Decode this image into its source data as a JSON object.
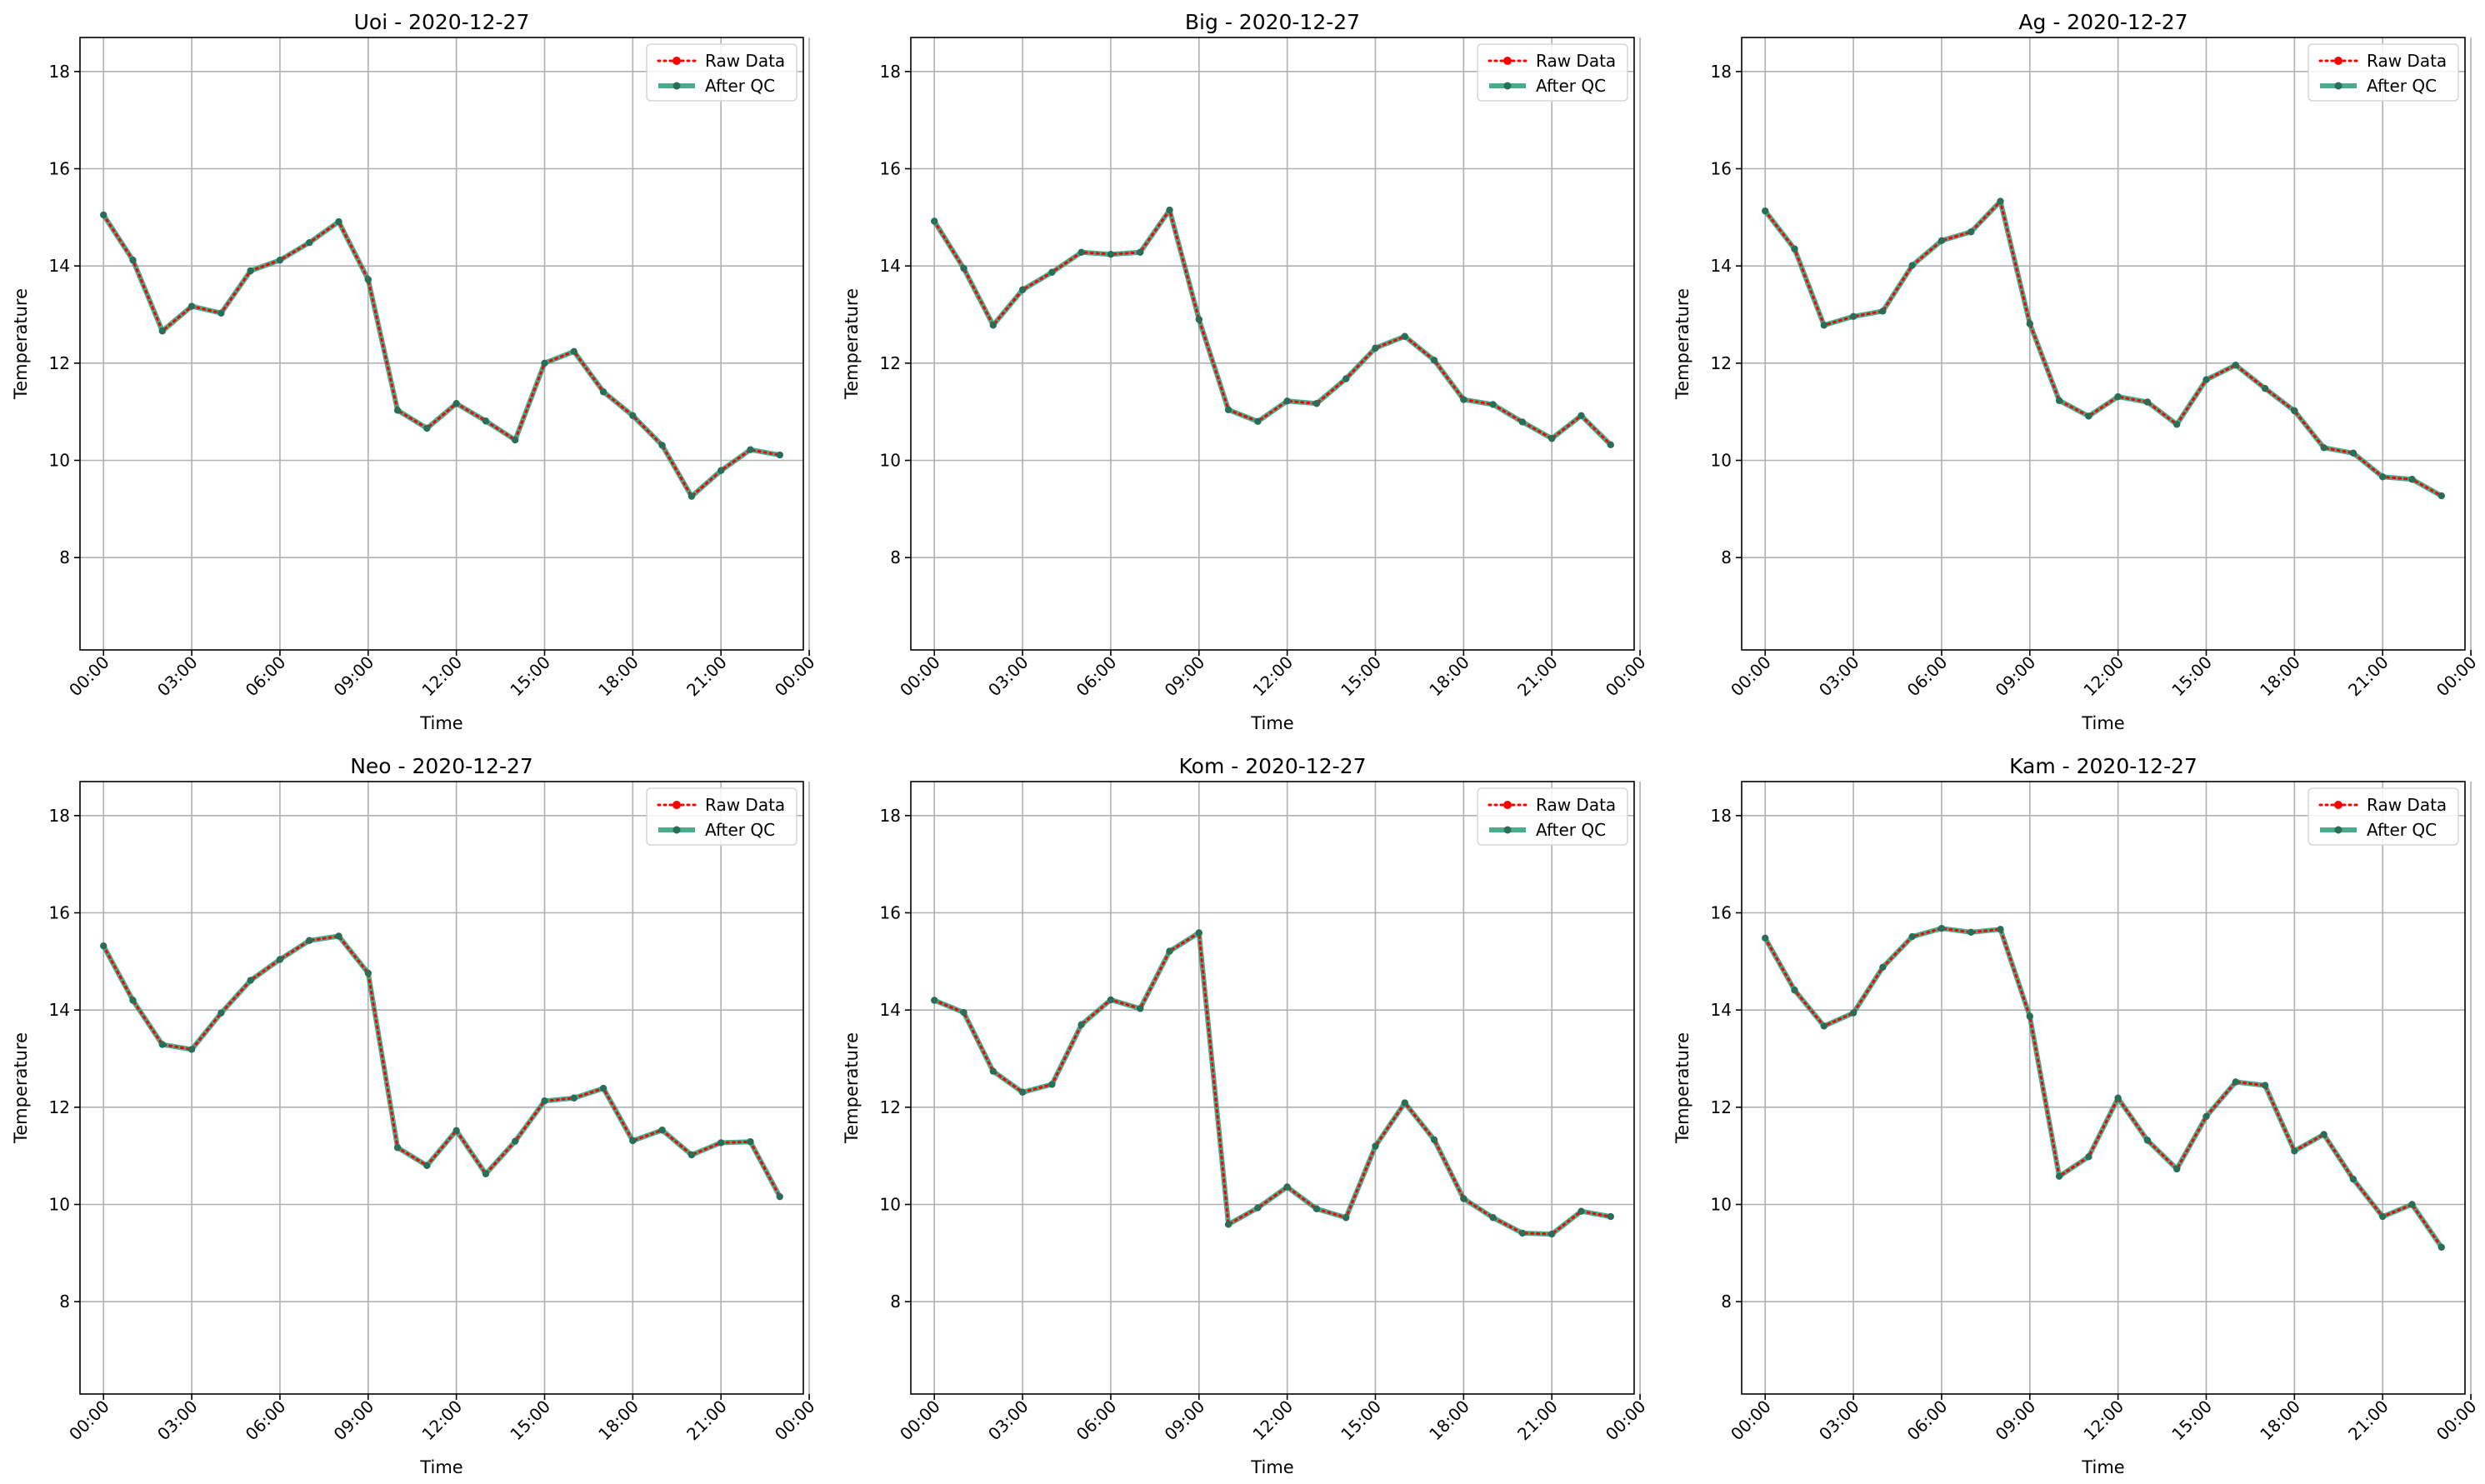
{
  "colors": {
    "raw": "#ff0000",
    "qc": "#2a9d78",
    "marker": "#2b6e58",
    "grid": "#b0b0b0",
    "axes": "#000000"
  },
  "chart_data": [
    {
      "type": "line",
      "title": "Uoi - 2020-12-27",
      "xlabel": "Time",
      "ylabel": "Temperature",
      "xlim": [
        -0.8,
        23.8
      ],
      "ylim": [
        6.1,
        18.7
      ],
      "yticks": [
        8,
        10,
        12,
        14,
        16,
        18
      ],
      "xticks": [
        0,
        3,
        6,
        9,
        12,
        15,
        18,
        21,
        24
      ],
      "xticklabels": [
        "00:00",
        "03:00",
        "06:00",
        "09:00",
        "12:00",
        "15:00",
        "18:00",
        "21:00",
        "00:00"
      ],
      "grid": true,
      "legend_position": "top-right",
      "x": [
        "00:00",
        "01:00",
        "02:00",
        "03:00",
        "04:00",
        "05:00",
        "06:00",
        "07:00",
        "08:00",
        "09:00",
        "10:00",
        "11:00",
        "12:00",
        "13:00",
        "14:00",
        "15:00",
        "16:00",
        "17:00",
        "18:00",
        "19:00",
        "20:00",
        "21:00",
        "22:00",
        "23:00"
      ],
      "series": [
        {
          "name": "Raw Data",
          "style": "dotted",
          "values": [
            15.05,
            14.12,
            12.66,
            13.17,
            13.03,
            13.9,
            14.12,
            14.48,
            14.91,
            13.72,
            11.03,
            10.66,
            11.17,
            10.81,
            10.42,
            12.0,
            12.24,
            11.41,
            10.92,
            10.31,
            9.26,
            9.79,
            10.22,
            10.11
          ]
        },
        {
          "name": "After QC",
          "style": "solid",
          "values": [
            15.05,
            14.12,
            12.66,
            13.17,
            13.03,
            13.9,
            14.12,
            14.48,
            14.91,
            13.72,
            11.03,
            10.66,
            11.17,
            10.81,
            10.42,
            12.0,
            12.24,
            11.41,
            10.92,
            10.31,
            9.26,
            9.79,
            10.22,
            10.11
          ]
        }
      ]
    },
    {
      "type": "line",
      "title": "Big - 2020-12-27",
      "xlabel": "Time",
      "ylabel": "Temperature",
      "xlim": [
        -0.8,
        23.8
      ],
      "ylim": [
        6.1,
        18.7
      ],
      "yticks": [
        8,
        10,
        12,
        14,
        16,
        18
      ],
      "xticks": [
        0,
        3,
        6,
        9,
        12,
        15,
        18,
        21,
        24
      ],
      "xticklabels": [
        "00:00",
        "03:00",
        "06:00",
        "09:00",
        "12:00",
        "15:00",
        "18:00",
        "21:00",
        "00:00"
      ],
      "grid": true,
      "legend_position": "top-right",
      "x": [
        "00:00",
        "01:00",
        "02:00",
        "03:00",
        "04:00",
        "05:00",
        "06:00",
        "07:00",
        "08:00",
        "09:00",
        "10:00",
        "11:00",
        "12:00",
        "13:00",
        "14:00",
        "15:00",
        "16:00",
        "17:00",
        "18:00",
        "19:00",
        "20:00",
        "21:00",
        "22:00",
        "23:00"
      ],
      "series": [
        {
          "name": "Raw Data",
          "style": "dotted",
          "values": [
            14.92,
            13.95,
            12.78,
            13.51,
            13.87,
            14.28,
            14.24,
            14.28,
            15.15,
            12.9,
            11.04,
            10.8,
            11.22,
            11.17,
            11.68,
            12.31,
            12.55,
            12.06,
            11.25,
            11.15,
            10.79,
            10.45,
            10.92,
            10.32
          ]
        },
        {
          "name": "After QC",
          "style": "solid",
          "values": [
            14.92,
            13.95,
            12.78,
            13.51,
            13.87,
            14.28,
            14.24,
            14.28,
            15.15,
            12.9,
            11.04,
            10.8,
            11.22,
            11.17,
            11.68,
            12.31,
            12.55,
            12.06,
            11.25,
            11.15,
            10.79,
            10.45,
            10.92,
            10.32
          ]
        }
      ]
    },
    {
      "type": "line",
      "title": "Ag - 2020-12-27",
      "xlabel": "Time",
      "ylabel": "Temperature",
      "xlim": [
        -0.8,
        23.8
      ],
      "ylim": [
        6.1,
        18.7
      ],
      "yticks": [
        8,
        10,
        12,
        14,
        16,
        18
      ],
      "xticks": [
        0,
        3,
        6,
        9,
        12,
        15,
        18,
        21,
        24
      ],
      "xticklabels": [
        "00:00",
        "03:00",
        "06:00",
        "09:00",
        "12:00",
        "15:00",
        "18:00",
        "21:00",
        "00:00"
      ],
      "grid": true,
      "legend_position": "top-right",
      "x": [
        "00:00",
        "01:00",
        "02:00",
        "03:00",
        "04:00",
        "05:00",
        "06:00",
        "07:00",
        "08:00",
        "09:00",
        "10:00",
        "11:00",
        "12:00",
        "13:00",
        "14:00",
        "15:00",
        "16:00",
        "17:00",
        "18:00",
        "19:00",
        "20:00",
        "21:00",
        "22:00",
        "23:00"
      ],
      "series": [
        {
          "name": "Raw Data",
          "style": "dotted",
          "values": [
            15.13,
            14.35,
            12.78,
            12.96,
            13.07,
            14.01,
            14.52,
            14.7,
            15.33,
            12.81,
            11.23,
            10.91,
            11.31,
            11.2,
            10.74,
            11.66,
            11.96,
            11.48,
            11.02,
            10.26,
            10.15,
            9.66,
            9.61,
            9.27
          ]
        },
        {
          "name": "After QC",
          "style": "solid",
          "values": [
            15.13,
            14.35,
            12.78,
            12.96,
            13.07,
            14.01,
            14.52,
            14.7,
            15.33,
            12.81,
            11.23,
            10.91,
            11.31,
            11.2,
            10.74,
            11.66,
            11.96,
            11.48,
            11.02,
            10.26,
            10.15,
            9.66,
            9.61,
            9.27
          ]
        }
      ]
    },
    {
      "type": "line",
      "title": "Neo - 2020-12-27",
      "xlabel": "Time",
      "ylabel": "Temperature",
      "xlim": [
        -0.8,
        23.8
      ],
      "ylim": [
        6.1,
        18.7
      ],
      "yticks": [
        8,
        10,
        12,
        14,
        16,
        18
      ],
      "xticks": [
        0,
        3,
        6,
        9,
        12,
        15,
        18,
        21,
        24
      ],
      "xticklabels": [
        "00:00",
        "03:00",
        "06:00",
        "09:00",
        "12:00",
        "15:00",
        "18:00",
        "21:00",
        "00:00"
      ],
      "grid": true,
      "legend_position": "top-right",
      "x": [
        "00:00",
        "01:00",
        "02:00",
        "03:00",
        "04:00",
        "05:00",
        "06:00",
        "07:00",
        "08:00",
        "09:00",
        "10:00",
        "11:00",
        "12:00",
        "13:00",
        "14:00",
        "15:00",
        "16:00",
        "17:00",
        "18:00",
        "19:00",
        "20:00",
        "21:00",
        "22:00",
        "23:00"
      ],
      "series": [
        {
          "name": "Raw Data",
          "style": "dotted",
          "values": [
            15.32,
            14.2,
            13.29,
            13.19,
            13.94,
            14.61,
            15.04,
            15.43,
            15.52,
            14.76,
            11.17,
            10.8,
            11.52,
            10.63,
            11.3,
            12.13,
            12.19,
            12.39,
            11.31,
            11.53,
            11.02,
            11.27,
            11.29,
            10.16
          ]
        },
        {
          "name": "After QC",
          "style": "solid",
          "values": [
            15.32,
            14.2,
            13.29,
            13.19,
            13.94,
            14.61,
            15.04,
            15.43,
            15.52,
            14.76,
            11.17,
            10.8,
            11.52,
            10.63,
            11.3,
            12.13,
            12.19,
            12.39,
            11.31,
            11.53,
            11.02,
            11.27,
            11.29,
            10.16
          ]
        }
      ]
    },
    {
      "type": "line",
      "title": "Kom - 2020-12-27",
      "xlabel": "Time",
      "ylabel": "Temperature",
      "xlim": [
        -0.8,
        23.8
      ],
      "ylim": [
        6.1,
        18.7
      ],
      "yticks": [
        8,
        10,
        12,
        14,
        16,
        18
      ],
      "xticks": [
        0,
        3,
        6,
        9,
        12,
        15,
        18,
        21,
        24
      ],
      "xticklabels": [
        "00:00",
        "03:00",
        "06:00",
        "09:00",
        "12:00",
        "15:00",
        "18:00",
        "21:00",
        "00:00"
      ],
      "grid": true,
      "legend_position": "top-right",
      "x": [
        "00:00",
        "01:00",
        "02:00",
        "03:00",
        "04:00",
        "05:00",
        "06:00",
        "07:00",
        "08:00",
        "09:00",
        "10:00",
        "11:00",
        "12:00",
        "13:00",
        "14:00",
        "15:00",
        "16:00",
        "17:00",
        "18:00",
        "19:00",
        "20:00",
        "21:00",
        "22:00",
        "23:00"
      ],
      "series": [
        {
          "name": "Raw Data",
          "style": "dotted",
          "values": [
            14.2,
            13.95,
            12.74,
            12.31,
            12.47,
            13.7,
            14.21,
            14.03,
            15.21,
            15.59,
            9.59,
            9.93,
            10.36,
            9.91,
            9.73,
            11.2,
            12.09,
            11.33,
            10.12,
            9.73,
            9.41,
            9.39,
            9.86,
            9.75
          ]
        },
        {
          "name": "After QC",
          "style": "solid",
          "values": [
            14.2,
            13.95,
            12.74,
            12.31,
            12.47,
            13.7,
            14.21,
            14.03,
            15.21,
            15.59,
            9.59,
            9.93,
            10.36,
            9.91,
            9.73,
            11.2,
            12.09,
            11.33,
            10.12,
            9.73,
            9.41,
            9.39,
            9.86,
            9.75
          ]
        }
      ]
    },
    {
      "type": "line",
      "title": "Kam - 2020-12-27",
      "xlabel": "Time",
      "ylabel": "Temperature",
      "xlim": [
        -0.8,
        23.8
      ],
      "ylim": [
        6.1,
        18.7
      ],
      "yticks": [
        8,
        10,
        12,
        14,
        16,
        18
      ],
      "xticks": [
        0,
        3,
        6,
        9,
        12,
        15,
        18,
        21,
        24
      ],
      "xticklabels": [
        "00:00",
        "03:00",
        "06:00",
        "09:00",
        "12:00",
        "15:00",
        "18:00",
        "21:00",
        "00:00"
      ],
      "grid": true,
      "legend_position": "top-right",
      "x": [
        "00:00",
        "01:00",
        "02:00",
        "03:00",
        "04:00",
        "05:00",
        "06:00",
        "07:00",
        "08:00",
        "09:00",
        "10:00",
        "11:00",
        "12:00",
        "13:00",
        "14:00",
        "15:00",
        "16:00",
        "17:00",
        "18:00",
        "19:00",
        "20:00",
        "21:00",
        "22:00",
        "23:00"
      ],
      "series": [
        {
          "name": "Raw Data",
          "style": "dotted",
          "values": [
            15.48,
            14.41,
            13.67,
            13.94,
            14.88,
            15.51,
            15.68,
            15.6,
            15.66,
            13.87,
            10.58,
            10.98,
            12.19,
            11.32,
            10.73,
            11.81,
            12.52,
            12.45,
            11.1,
            11.44,
            10.52,
            9.75,
            10.0,
            9.12
          ]
        },
        {
          "name": "After QC",
          "style": "solid",
          "values": [
            15.48,
            14.41,
            13.67,
            13.94,
            14.88,
            15.51,
            15.68,
            15.6,
            15.66,
            13.87,
            10.58,
            10.98,
            12.19,
            11.32,
            10.73,
            11.81,
            12.52,
            12.45,
            11.1,
            11.44,
            10.52,
            9.75,
            10.0,
            9.12
          ]
        }
      ]
    }
  ]
}
